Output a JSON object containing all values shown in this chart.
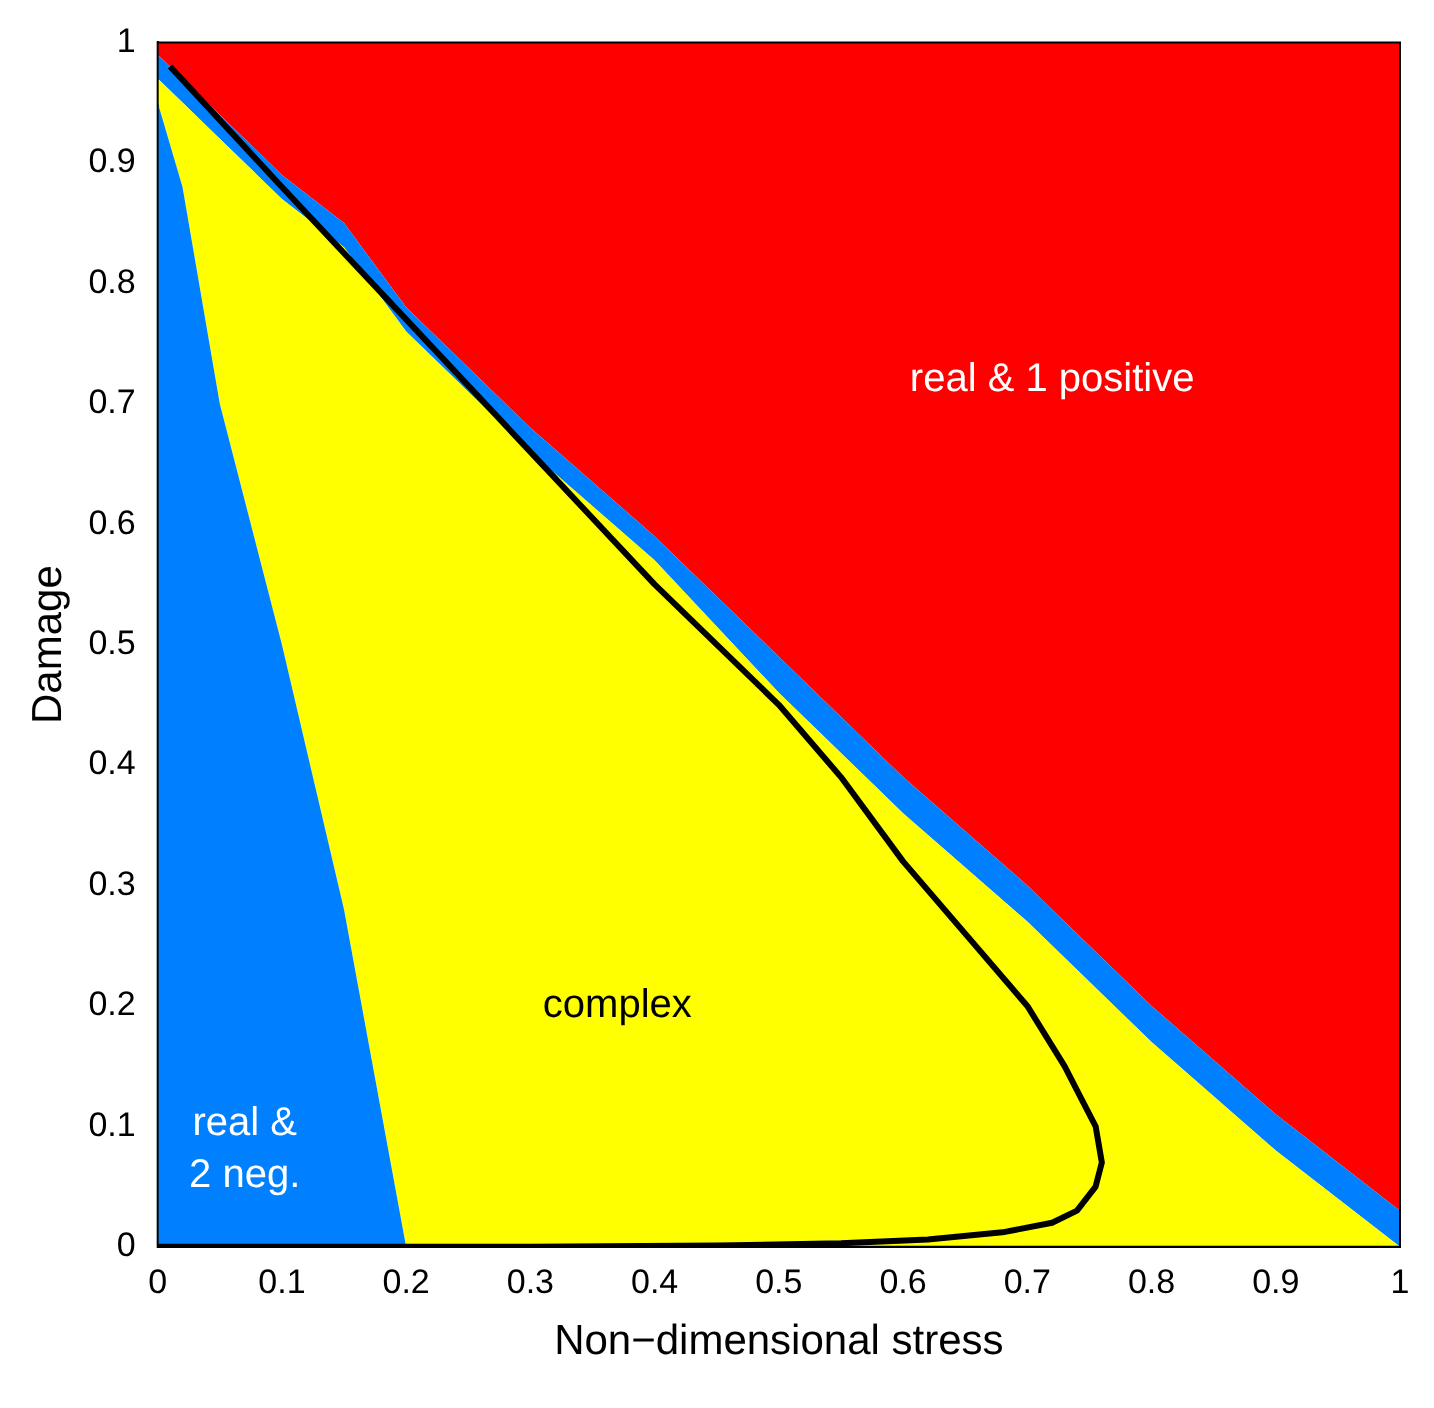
{
  "chart_data": {
    "type": "area",
    "stacked": true,
    "xlabel": "Non−dimensional stress",
    "ylabel": "Damage",
    "x": [
      0,
      0.02,
      0.05,
      0.1,
      0.15,
      0.2,
      0.3,
      0.4,
      0.5,
      0.6,
      0.7,
      0.8,
      0.9,
      1
    ],
    "series": [
      {
        "color": "#0080ff",
        "values": [
          0.95,
          0.88,
          0.7,
          0.5,
          0.28,
          0,
          0,
          0,
          0,
          0,
          0,
          0,
          0,
          0
        ]
      },
      {
        "color": "#ffff00",
        "values": [
          0.02,
          0.07,
          0.22,
          0.37,
          0.55,
          0.76,
          0.66,
          0.57,
          0.46,
          0.36,
          0.27,
          0.17,
          0.08,
          0
        ]
      },
      {
        "color": "#0080ff",
        "values": [
          0.02,
          0.02,
          0.02,
          0.02,
          0.02,
          0.02,
          0.02,
          0.02,
          0.03,
          0.03,
          0.03,
          0.03,
          0.03,
          0.03
        ]
      },
      {
        "color": "#ff0000",
        "values": [
          0.01,
          0.03,
          0.06,
          0.11,
          0.15,
          0.22,
          0.32,
          0.41,
          0.51,
          0.61,
          0.7,
          0.8,
          0.89,
          0.97
        ]
      },
      {
        "type": "line",
        "color": "#000000",
        "x": [
          0.01,
          0.1,
          0.2,
          0.3,
          0.4,
          0.5,
          0.55,
          0.6,
          0.65,
          0.7,
          0.73,
          0.745,
          0.755,
          0.76,
          0.755,
          0.74,
          0.72,
          0.68,
          0.62,
          0.55,
          0.45,
          0.3,
          0.15,
          0
        ],
        "values": [
          0.98,
          0.88,
          0.77,
          0.66,
          0.55,
          0.45,
          0.39,
          0.32,
          0.26,
          0.2,
          0.15,
          0.12,
          0.1,
          0.07,
          0.05,
          0.03,
          0.02,
          0.012,
          0.006,
          0.003,
          0.001,
          0,
          0,
          0
        ]
      }
    ],
    "xlim": [
      0,
      1
    ],
    "ylim": [
      0,
      1
    ],
    "xticks": [
      0,
      0.1,
      0.2,
      0.3,
      0.4,
      0.5,
      0.6,
      0.7,
      0.8,
      0.9,
      1
    ],
    "yticks": [
      0,
      0.1,
      0.2,
      0.3,
      0.4,
      0.5,
      0.6,
      0.7,
      0.8,
      0.9,
      1
    ],
    "grid": false,
    "legend": false,
    "annotations": [
      "real & 1 positive",
      "complex",
      "real &\n2 neg."
    ]
  }
}
